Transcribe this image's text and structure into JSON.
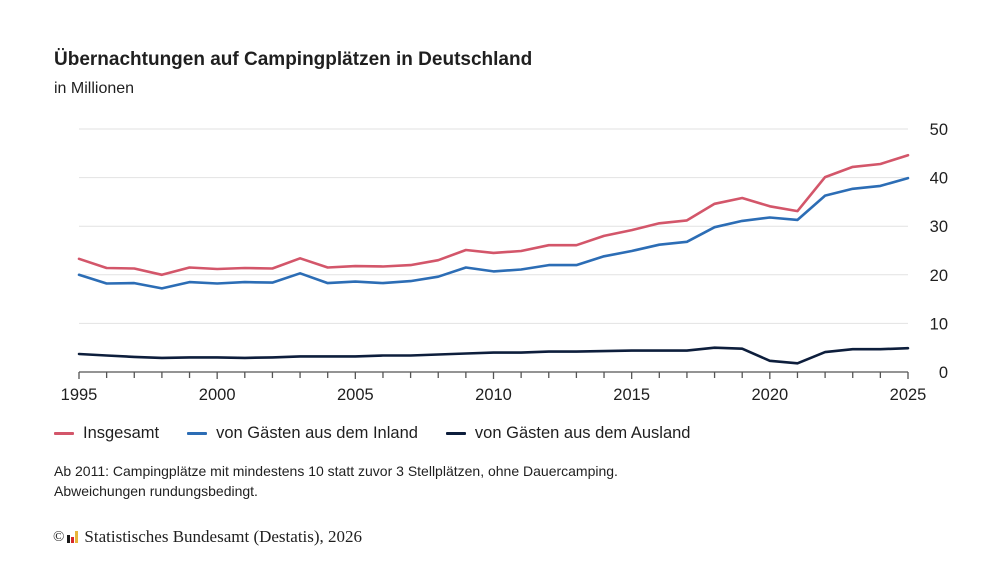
{
  "header": {
    "title": "Übernachtungen auf Campingplätzen in Deutschland",
    "subtitle": "in Millionen"
  },
  "legend": [
    {
      "label": "Insgesamt",
      "color": "#d3566a"
    },
    {
      "label": "von Gästen aus dem Inland",
      "color": "#2c6db5"
    },
    {
      "label": "von Gästen aus dem Ausland",
      "color": "#0d1e3c"
    }
  ],
  "notes": [
    "Ab 2011: Campingplätze mit mindestens 10 statt zuvor 3 Stellplätzen, ohne Dauercamping.",
    "Abweichungen rundungsbedingt."
  ],
  "source": {
    "copyright_symbol": "©",
    "text": "Statistisches Bundesamt (Destatis), 2026",
    "logo_colors": [
      "#1a1a1a",
      "#d62a2a",
      "#e8b53a"
    ]
  },
  "chart_data": {
    "type": "line",
    "title": "Übernachtungen auf Campingplätzen in Deutschland",
    "subtitle": "in Millionen",
    "xlabel": "",
    "ylabel": "in Millionen",
    "x": [
      1995,
      1996,
      1997,
      1998,
      1999,
      2000,
      2001,
      2002,
      2003,
      2004,
      2005,
      2006,
      2007,
      2008,
      2009,
      2010,
      2011,
      2012,
      2013,
      2014,
      2015,
      2016,
      2017,
      2018,
      2019,
      2020,
      2021,
      2022,
      2023,
      2024,
      2025
    ],
    "x_tick_labels": [
      "1995",
      "2000",
      "2005",
      "2010",
      "2015",
      "2020",
      "2025"
    ],
    "xlim": [
      1995,
      2025
    ],
    "ylim": [
      0,
      50
    ],
    "y_ticks": [
      0,
      10,
      20,
      30,
      40,
      50
    ],
    "y_axis_side": "right",
    "grid": true,
    "legend_position": "bottom-left",
    "series": [
      {
        "name": "Insgesamt",
        "color": "#d3566a",
        "values": [
          23.3,
          21.4,
          21.3,
          20.0,
          21.5,
          21.2,
          21.4,
          21.3,
          23.4,
          21.5,
          21.8,
          21.7,
          22.0,
          23.0,
          25.1,
          24.5,
          24.9,
          26.1,
          26.1,
          28.0,
          29.2,
          30.6,
          31.2,
          34.6,
          35.8,
          34.1,
          33.1,
          40.1,
          42.2,
          42.8,
          44.6
        ]
      },
      {
        "name": "von Gästen aus dem Inland",
        "color": "#2c6db5",
        "values": [
          20.0,
          18.2,
          18.3,
          17.2,
          18.5,
          18.2,
          18.5,
          18.4,
          20.3,
          18.3,
          18.6,
          18.3,
          18.7,
          19.6,
          21.5,
          20.7,
          21.1,
          22.0,
          22.0,
          23.8,
          24.9,
          26.2,
          26.8,
          29.8,
          31.1,
          31.8,
          31.3,
          36.3,
          37.7,
          38.3,
          39.9
        ]
      },
      {
        "name": "von Gästen aus dem Ausland",
        "color": "#0d1e3c",
        "values": [
          3.7,
          3.4,
          3.1,
          2.9,
          3.0,
          3.0,
          2.9,
          3.0,
          3.2,
          3.2,
          3.2,
          3.4,
          3.4,
          3.6,
          3.8,
          4.0,
          4.0,
          4.2,
          4.2,
          4.3,
          4.4,
          4.4,
          4.4,
          5.0,
          4.8,
          2.3,
          1.8,
          4.1,
          4.7,
          4.7,
          4.9
        ]
      }
    ]
  }
}
